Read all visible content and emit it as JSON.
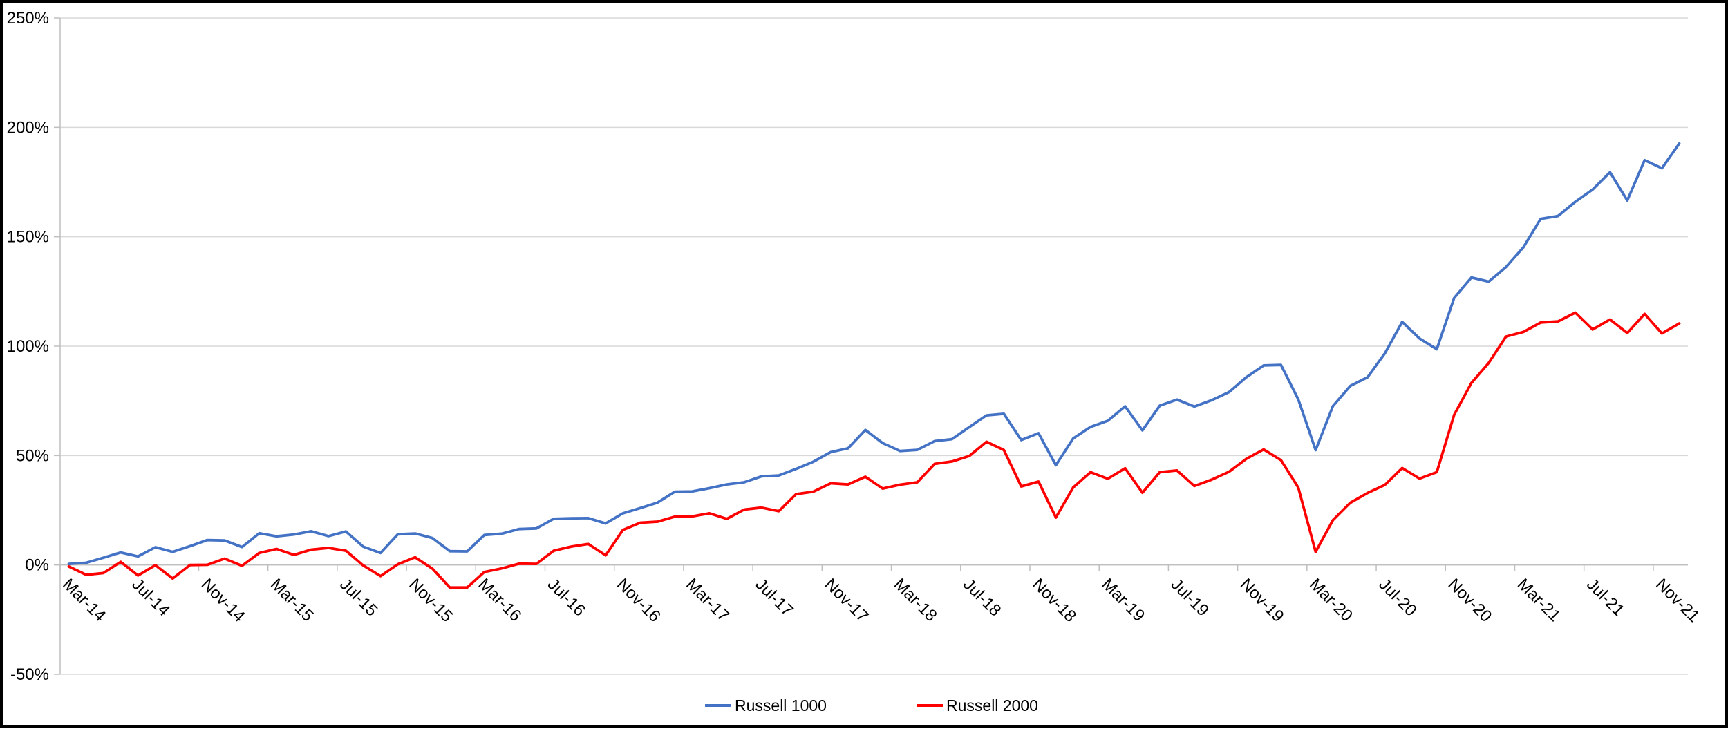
{
  "chart_data": {
    "type": "line",
    "title": "",
    "xlabel": "",
    "ylabel": "",
    "grid": "horizontal",
    "ylim": [
      -50,
      250
    ],
    "y_ticks": [
      "250%",
      "200%",
      "150%",
      "100%",
      "50%",
      "0%",
      "-50%"
    ],
    "y_tick_values": [
      250,
      200,
      150,
      100,
      50,
      0,
      -50
    ],
    "x_axis_labels": [
      "Mar-14",
      "Jul-14",
      "Nov-14",
      "Mar-15",
      "Jul-15",
      "Nov-15",
      "Mar-16",
      "Jul-16",
      "Nov-16",
      "Mar-17",
      "Jul-17",
      "Nov-17",
      "Mar-18",
      "Jul-18",
      "Nov-18",
      "Mar-19",
      "Jul-19",
      "Nov-19",
      "Mar-20",
      "Jul-20",
      "Nov-20",
      "Mar-21",
      "Jul-21",
      "Nov-21"
    ],
    "x_label_interval_months": 4,
    "legend_position": "bottom-center",
    "months": [
      "Mar-14",
      "Apr-14",
      "May-14",
      "Jun-14",
      "Jul-14",
      "Aug-14",
      "Sep-14",
      "Oct-14",
      "Nov-14",
      "Dec-14",
      "Jan-15",
      "Feb-15",
      "Mar-15",
      "Apr-15",
      "May-15",
      "Jun-15",
      "Jul-15",
      "Aug-15",
      "Sep-15",
      "Oct-15",
      "Nov-15",
      "Dec-15",
      "Jan-16",
      "Feb-16",
      "Mar-16",
      "Apr-16",
      "May-16",
      "Jun-16",
      "Jul-16",
      "Aug-16",
      "Sep-16",
      "Oct-16",
      "Nov-16",
      "Dec-16",
      "Jan-17",
      "Feb-17",
      "Mar-17",
      "Apr-17",
      "May-17",
      "Jun-17",
      "Jul-17",
      "Aug-17",
      "Sep-17",
      "Oct-17",
      "Nov-17",
      "Dec-17",
      "Jan-18",
      "Feb-18",
      "Mar-18",
      "Apr-18",
      "May-18",
      "Jun-18",
      "Jul-18",
      "Aug-18",
      "Sep-18",
      "Oct-18",
      "Nov-18",
      "Dec-18",
      "Jan-19",
      "Feb-19",
      "Mar-19",
      "Apr-19",
      "May-19",
      "Jun-19",
      "Jul-19",
      "Aug-19",
      "Sep-19",
      "Oct-19",
      "Nov-19",
      "Dec-19",
      "Jan-20",
      "Feb-20",
      "Mar-20",
      "Apr-20",
      "May-20",
      "Jun-20",
      "Jul-20",
      "Aug-20",
      "Sep-20",
      "Oct-20",
      "Nov-20",
      "Dec-20",
      "Jan-21",
      "Feb-21",
      "Mar-21",
      "Apr-21",
      "May-21",
      "Jun-21",
      "Jul-21",
      "Aug-21",
      "Sep-21",
      "Oct-21",
      "Nov-21",
      "Dec-21"
    ],
    "unit": "percent_cumulative_return",
    "series": [
      {
        "name": "Russell 1000",
        "color": "#4472C4",
        "values": [
          0.5,
          1.0,
          3.3,
          5.7,
          3.9,
          8.1,
          6.0,
          8.6,
          11.4,
          11.2,
          8.2,
          14.5,
          13.1,
          13.9,
          15.4,
          13.2,
          15.3,
          8.4,
          5.5,
          14.0,
          14.4,
          12.3,
          6.3,
          6.2,
          13.7,
          14.3,
          16.4,
          16.7,
          21.1,
          21.3,
          21.4,
          19.0,
          23.6,
          26.0,
          28.5,
          33.5,
          33.6,
          35.1,
          36.8,
          37.8,
          40.5,
          40.9,
          43.9,
          47.2,
          51.6,
          53.3,
          61.7,
          55.7,
          52.1,
          52.6,
          56.6,
          57.5,
          63.0,
          68.4,
          69.1,
          57.1,
          60.2,
          45.6,
          57.8,
          63.1,
          65.9,
          72.5,
          61.5,
          72.8,
          75.6,
          72.4,
          75.3,
          79.0,
          85.8,
          91.2,
          91.4,
          75.7,
          52.5,
          72.6,
          81.8,
          85.8,
          96.7,
          111.1,
          103.5,
          98.6,
          122.0,
          131.4,
          129.5,
          136.2,
          145.2,
          158.2,
          159.5,
          166.0,
          171.6,
          179.5,
          166.6,
          185.0,
          181.3,
          192.6
        ]
      },
      {
        "name": "Russell 2000",
        "color": "#FF0000",
        "values": [
          -0.7,
          -4.5,
          -3.7,
          1.4,
          -4.8,
          -0.1,
          -6.2,
          0.0,
          0.1,
          2.9,
          -0.4,
          5.5,
          7.3,
          4.6,
          7.0,
          7.8,
          6.5,
          -0.2,
          -5.1,
          0.3,
          3.5,
          -1.7,
          -10.3,
          -10.3,
          -3.2,
          -1.6,
          0.6,
          0.5,
          6.5,
          8.4,
          9.6,
          4.4,
          16.0,
          19.3,
          19.8,
          22.1,
          22.2,
          23.6,
          21.1,
          25.3,
          26.2,
          24.6,
          32.4,
          33.5,
          37.3,
          36.8,
          40.3,
          34.9,
          36.7,
          37.8,
          46.2,
          47.3,
          49.8,
          56.3,
          52.5,
          35.9,
          38.1,
          21.7,
          35.4,
          42.4,
          39.4,
          44.2,
          33.0,
          42.4,
          43.2,
          36.1,
          39.0,
          42.6,
          48.5,
          52.8,
          47.9,
          35.4,
          6.0,
          20.5,
          28.4,
          32.9,
          36.6,
          44.3,
          39.5,
          42.4,
          68.6,
          83.2,
          92.4,
          104.4,
          106.5,
          110.8,
          111.3,
          115.3,
          107.6,
          112.2,
          106.0,
          114.7,
          105.8,
          110.4
        ]
      }
    ],
    "colors": {
      "grid": "#D9D9D9",
      "axis": "#BFBFBF",
      "text": "#000000",
      "background": "#FFFFFF",
      "border": "#000000"
    }
  }
}
